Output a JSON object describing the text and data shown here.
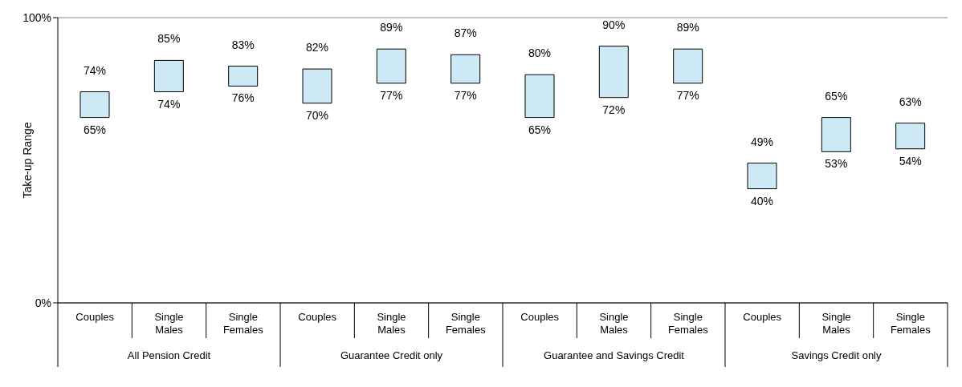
{
  "chart_data": {
    "type": "bar",
    "ylabel": "Take-up Range",
    "categories": [
      "Couples",
      "Single Males",
      "Single Females",
      "Couples",
      "Single Males",
      "Single Females",
      "Couples",
      "Single Males",
      "Single Females",
      "Couples",
      "Single Males",
      "Single Females"
    ],
    "base": [
      65,
      74,
      76,
      70,
      77,
      77,
      65,
      72,
      77,
      40,
      53,
      54
    ],
    "values": [
      9,
      11,
      7,
      12,
      12,
      10,
      15,
      18,
      12,
      9,
      12,
      9
    ],
    "value_labels": [
      "74%",
      "85%",
      "83%",
      "82%",
      "89%",
      "87%",
      "80%",
      "90%",
      "89%",
      "49%",
      "65%",
      "63%"
    ],
    "color": "#cce9f5",
    "ylim": [
      0,
      100
    ],
    "yticks": [
      {
        "value": 0,
        "label": "0%"
      },
      {
        "value": 100,
        "label": "100%"
      }
    ],
    "grid": "y",
    "annotations": [
      "All Pension Credit",
      "Guarantee Credit only",
      "Guarantee and Savings Credit",
      "Savings Credit only",
      "65%",
      "74%",
      "76%",
      "70%",
      "77%",
      "77%",
      "65%",
      "72%",
      "77%",
      "40%",
      "53%",
      "54%"
    ]
  }
}
